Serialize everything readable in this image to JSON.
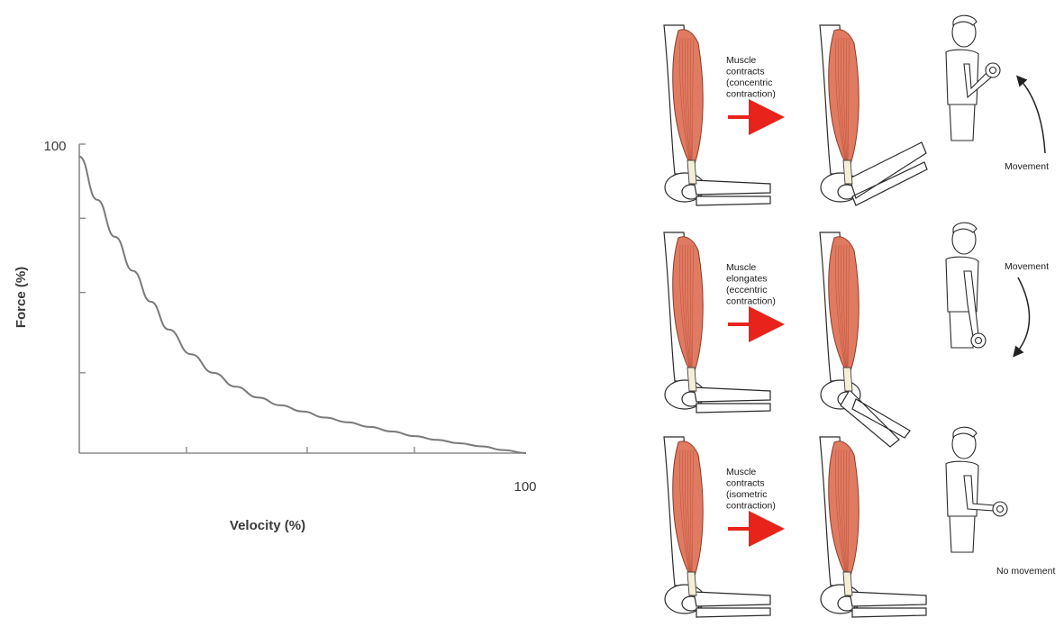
{
  "chart_data": {
    "type": "line",
    "xlabel": "Velocity (%)",
    "ylabel": "Force (%)",
    "xlim": [
      0,
      100
    ],
    "ylim": [
      0,
      100
    ],
    "x_tick_labels": [
      "100"
    ],
    "y_tick_labels": [
      "100"
    ],
    "series": [
      {
        "x": [
          0,
          4,
          8,
          12,
          16,
          20,
          25,
          30,
          35,
          40,
          45,
          50,
          55,
          60,
          65,
          70,
          75,
          80,
          85,
          90,
          95,
          100
        ],
        "values": [
          96,
          82,
          70,
          59,
          49,
          40,
          32,
          26,
          21.5,
          18,
          15.5,
          13.5,
          11.5,
          10,
          8.5,
          7,
          5.5,
          4.3,
          3.2,
          2.2,
          1,
          0
        ]
      }
    ],
    "grid": false,
    "line_color": "#7a7a7a"
  },
  "panels": [
    {
      "caption_lines": [
        "Muscle",
        "contracts",
        "(concentric",
        "contraction)"
      ],
      "movement_label": "Movement",
      "forearm_pose": "raised",
      "arrow": "up"
    },
    {
      "caption_lines": [
        "Muscle",
        "elongates",
        "(eccentric",
        "contraction)"
      ],
      "movement_label": "Movement",
      "forearm_pose": "lowered",
      "arrow": "down"
    },
    {
      "caption_lines": [
        "Muscle",
        "contracts",
        "(isometric",
        "contraction)"
      ],
      "movement_label": "No movement",
      "forearm_pose": "horizontal",
      "arrow": "none"
    }
  ],
  "colors": {
    "muscle": "#e07b62",
    "muscle_dark": "#b54a34",
    "arrow": "#e8231c"
  }
}
